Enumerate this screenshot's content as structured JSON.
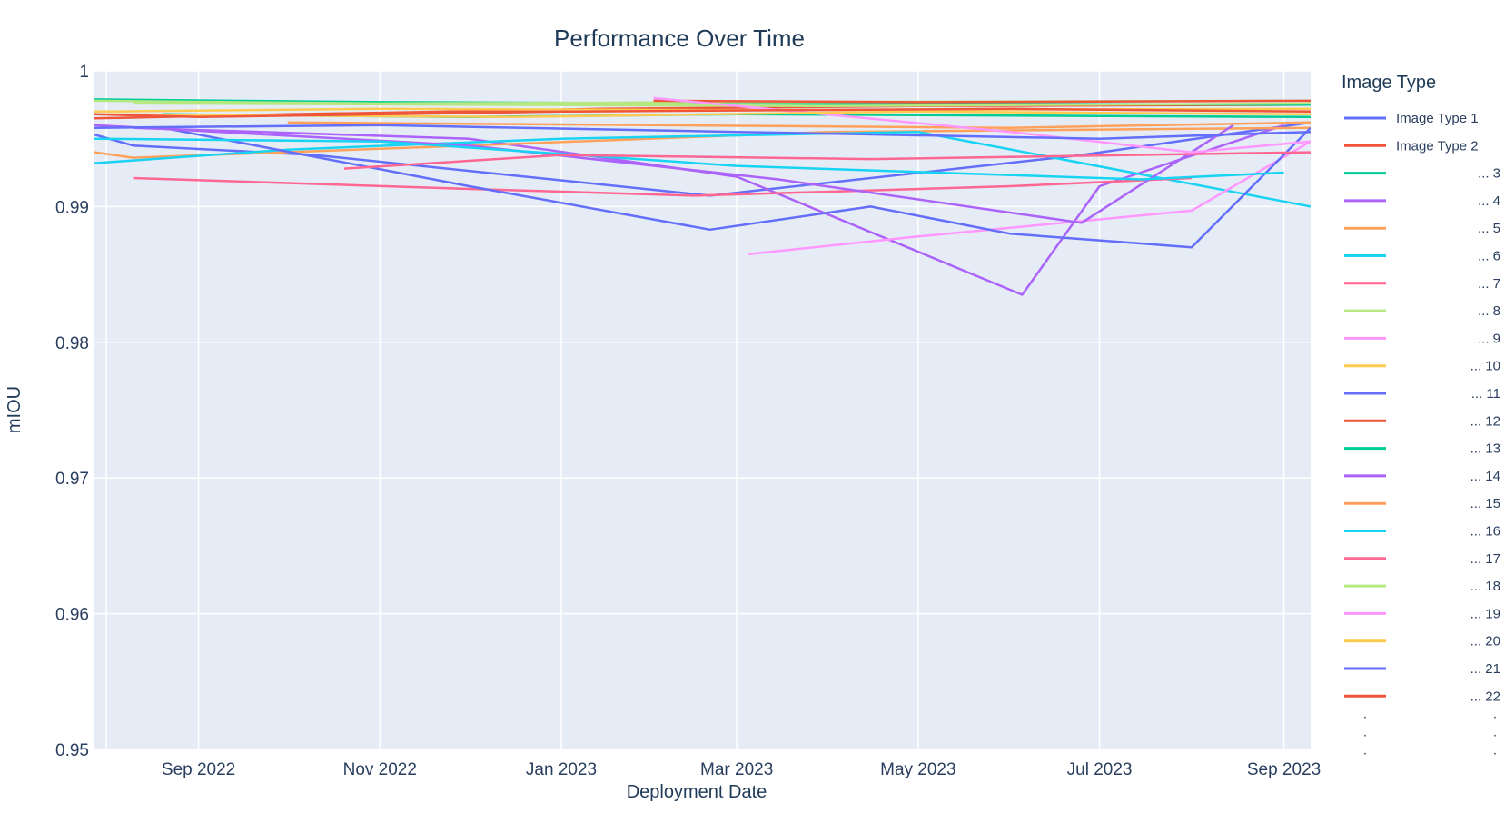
{
  "chart_data": {
    "type": "line",
    "title": "Performance Over Time",
    "xlabel": "Deployment Date",
    "ylabel": "mIOU",
    "xlim": [
      "2022-07-28",
      "2023-09-10"
    ],
    "ylim": [
      0.95,
      1.0
    ],
    "x_ticks": [
      {
        "date": "2022-09-01",
        "label": "Sep 2022"
      },
      {
        "date": "2022-11-01",
        "label": "Nov 2022"
      },
      {
        "date": "2023-01-01",
        "label": "Jan 2023"
      },
      {
        "date": "2023-03-01",
        "label": "Mar 2023"
      },
      {
        "date": "2023-05-01",
        "label": "May 2023"
      },
      {
        "date": "2023-07-01",
        "label": "Jul 2023"
      },
      {
        "date": "2023-09-01",
        "label": "Sep 2023"
      }
    ],
    "y_ticks": [
      {
        "value": 0.95,
        "label": "0.95"
      },
      {
        "value": 0.96,
        "label": "0.96"
      },
      {
        "value": 0.97,
        "label": "0.97"
      },
      {
        "value": 0.98,
        "label": "0.98"
      },
      {
        "value": 0.99,
        "label": "0.99"
      },
      {
        "value": 1.0,
        "label": "1"
      }
    ],
    "grid": true,
    "legend": {
      "title": "Image Type",
      "placement": "right",
      "entries": [
        "Image Type 1",
        "Image Type 2",
        "... 3",
        "... 4",
        "... 5",
        "... 6",
        "... 7",
        "... 8",
        "... 9",
        "... 10",
        "... 11",
        "... 12",
        "... 13",
        "... 14",
        "... 15",
        "... 16",
        "... 17",
        "... 18",
        "... 19",
        "... 20",
        "... 21",
        "... 22"
      ],
      "continuation": "."
    },
    "series": [
      {
        "color": "#636efa",
        "x": [
          "2022-07-28",
          "2022-08-10",
          "2022-10-10",
          "2023-02-20",
          "2023-06-25",
          "2023-09-10"
        ],
        "y": [
          0.9953,
          0.9945,
          0.9938,
          0.9908,
          0.9938,
          0.9962
        ]
      },
      {
        "color": "#ef553b",
        "x": [
          "2022-07-28",
          "2022-10-01",
          "2023-01-15",
          "2023-05-01",
          "2023-09-10"
        ],
        "y": [
          0.9965,
          0.9968,
          0.9972,
          0.9974,
          0.9975
        ]
      },
      {
        "color": "#00cc96",
        "x": [
          "2022-07-28",
          "2022-11-01",
          "2023-03-01",
          "2023-09-10"
        ],
        "y": [
          0.9979,
          0.9977,
          0.9976,
          0.9975
        ]
      },
      {
        "color": "#ab63fa",
        "x": [
          "2022-08-10",
          "2022-12-01",
          "2023-03-01",
          "2023-06-05",
          "2023-07-01",
          "2023-09-01"
        ],
        "y": [
          0.9958,
          0.995,
          0.9922,
          0.9835,
          0.9915,
          0.996
        ]
      },
      {
        "color": "#ffa15a",
        "x": [
          "2022-07-28",
          "2022-08-10",
          "2022-12-01",
          "2023-04-01",
          "2023-09-10"
        ],
        "y": [
          0.994,
          0.9936,
          0.9945,
          0.9955,
          0.9958
        ]
      },
      {
        "color": "#19d3f3",
        "x": [
          "2022-07-28",
          "2022-10-01",
          "2023-01-01",
          "2023-05-01",
          "2023-09-10"
        ],
        "y": [
          0.9932,
          0.9942,
          0.995,
          0.9955,
          0.99
        ]
      },
      {
        "color": "#ff6692",
        "x": [
          "2022-08-10",
          "2022-12-01",
          "2023-02-15",
          "2023-06-01",
          "2023-08-01"
        ],
        "y": [
          0.9921,
          0.9913,
          0.9908,
          0.9915,
          0.9921
        ]
      },
      {
        "color": "#b6e880",
        "x": [
          "2022-07-28",
          "2022-11-01",
          "2023-03-01",
          "2023-09-10"
        ],
        "y": [
          0.9978,
          0.9976,
          0.9977,
          0.9978
        ]
      },
      {
        "color": "#ff97ff",
        "x": [
          "2023-03-05",
          "2023-05-01",
          "2023-08-01",
          "2023-09-10"
        ],
        "y": [
          0.9865,
          0.9878,
          0.9897,
          0.9948
        ]
      },
      {
        "color": "#fecb52",
        "x": [
          "2022-07-28",
          "2022-11-01",
          "2023-03-01",
          "2023-09-10"
        ],
        "y": [
          0.997,
          0.9972,
          0.9971,
          0.9972
        ]
      },
      {
        "color": "#636efa",
        "x": [
          "2022-08-20",
          "2022-12-01",
          "2023-02-20",
          "2023-04-15",
          "2023-06-01",
          "2023-08-01",
          "2023-09-10"
        ],
        "y": [
          0.9958,
          0.9915,
          0.9883,
          0.99,
          0.988,
          0.987,
          0.9958
        ]
      },
      {
        "color": "#ef553b",
        "x": [
          "2023-02-01",
          "2023-05-01",
          "2023-09-10"
        ],
        "y": [
          0.9978,
          0.9977,
          0.9978
        ]
      },
      {
        "color": "#00cc96",
        "x": [
          "2022-08-20",
          "2022-12-01",
          "2023-03-01",
          "2023-09-10"
        ],
        "y": [
          0.9968,
          0.9966,
          0.9968,
          0.9966
        ]
      },
      {
        "color": "#ab63fa",
        "x": [
          "2022-07-28",
          "2022-12-01",
          "2023-03-15",
          "2023-06-25",
          "2023-08-15"
        ],
        "y": [
          0.996,
          0.9945,
          0.992,
          0.9888,
          0.996
        ]
      },
      {
        "color": "#ffa15a",
        "x": [
          "2022-10-01",
          "2023-02-01",
          "2023-06-01",
          "2023-09-10"
        ],
        "y": [
          0.9962,
          0.996,
          0.9958,
          0.9962
        ]
      },
      {
        "color": "#19d3f3",
        "x": [
          "2022-07-28",
          "2022-11-01",
          "2023-03-01",
          "2023-07-15",
          "2023-09-01"
        ],
        "y": [
          0.995,
          0.9948,
          0.993,
          0.992,
          0.9925
        ]
      },
      {
        "color": "#ff6692",
        "x": [
          "2022-10-20",
          "2023-01-01",
          "2023-04-15",
          "2023-09-10"
        ],
        "y": [
          0.9928,
          0.9938,
          0.9935,
          0.994
        ]
      },
      {
        "color": "#b6e880",
        "x": [
          "2022-08-10",
          "2022-12-01",
          "2023-04-01",
          "2023-09-10"
        ],
        "y": [
          0.9976,
          0.9975,
          0.9974,
          0.9976
        ]
      },
      {
        "color": "#ff97ff",
        "x": [
          "2023-02-01",
          "2023-06-01",
          "2023-08-01",
          "2023-09-10"
        ],
        "y": [
          0.998,
          0.9955,
          0.994,
          0.9948
        ]
      },
      {
        "color": "#fecb52",
        "x": [
          "2022-08-01",
          "2022-12-15",
          "2023-05-01",
          "2023-09-10"
        ],
        "y": [
          0.9968,
          0.9966,
          0.997,
          0.9968
        ]
      },
      {
        "color": "#636efa",
        "x": [
          "2022-07-28",
          "2022-11-01",
          "2023-03-01",
          "2023-07-01",
          "2023-09-10"
        ],
        "y": [
          0.9958,
          0.996,
          0.9955,
          0.995,
          0.9955
        ]
      },
      {
        "color": "#ef553b",
        "x": [
          "2022-07-28",
          "2022-09-01",
          "2023-01-01",
          "2023-06-01",
          "2023-09-10"
        ],
        "y": [
          0.9968,
          0.9966,
          0.997,
          0.9972,
          0.997
        ]
      }
    ]
  }
}
